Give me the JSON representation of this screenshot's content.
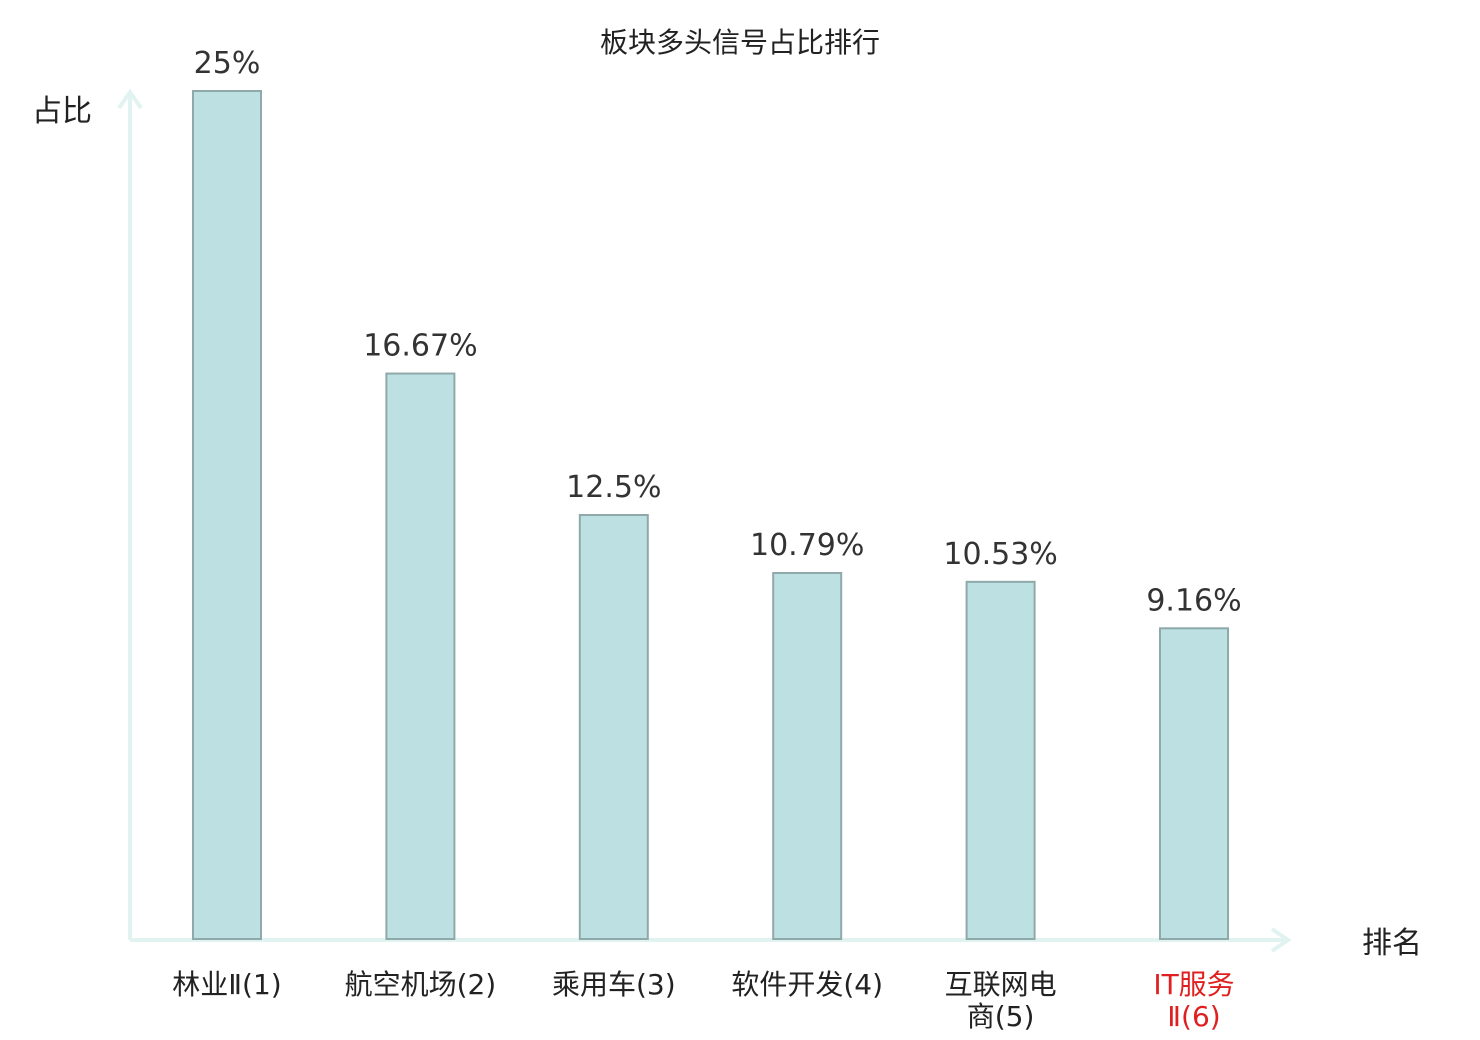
{
  "chart_data": {
    "type": "bar",
    "title": "板块多头信号占比排行",
    "ylabel": "占比",
    "xlabel": "排名",
    "categories": [
      {
        "lines": [
          "林业Ⅱ(1)"
        ],
        "highlight": false
      },
      {
        "lines": [
          "航空机场(2)"
        ],
        "highlight": false
      },
      {
        "lines": [
          "乘用车(3)"
        ],
        "highlight": false
      },
      {
        "lines": [
          "软件开发(4)"
        ],
        "highlight": false
      },
      {
        "lines": [
          "互联网电",
          "商(5)"
        ],
        "highlight": false
      },
      {
        "lines": [
          "IT服务",
          "Ⅱ(6)"
        ],
        "highlight": true
      }
    ],
    "values": [
      25,
      16.67,
      12.5,
      10.79,
      10.53,
      9.16
    ],
    "value_labels": [
      "25%",
      "16.67%",
      "12.5%",
      "10.79%",
      "10.53%",
      "9.16%"
    ],
    "ylim": [
      0,
      25
    ],
    "grid": false,
    "colors": {
      "bar_fill": "#bde0e3",
      "bar_stroke": "#8fa8aa",
      "axis": "#e0f3f1",
      "highlight_label": "#e02020"
    }
  }
}
